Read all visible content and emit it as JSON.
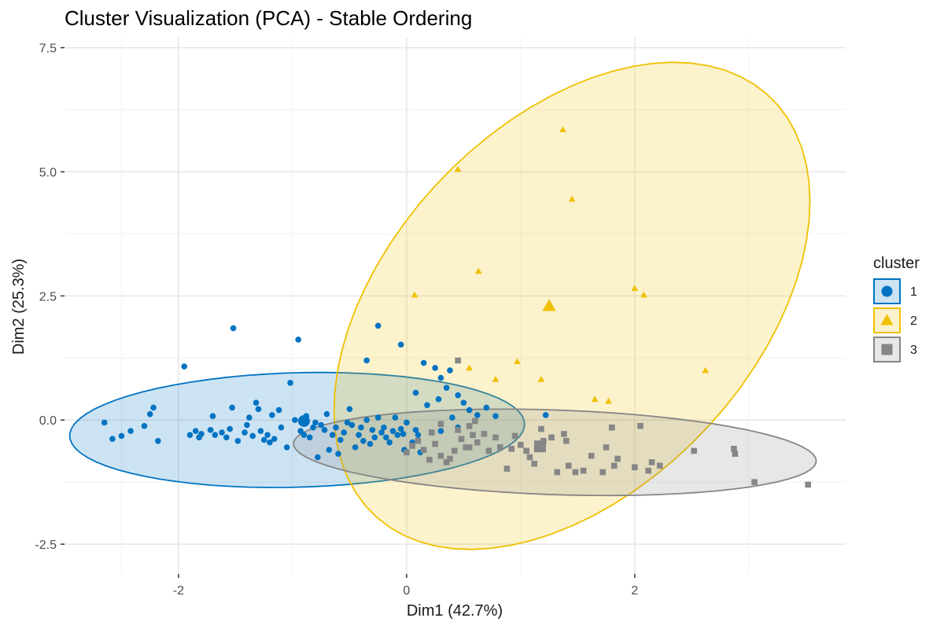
{
  "chart_data": {
    "type": "scatter",
    "title": "Cluster Visualization (PCA) - Stable Ordering",
    "xlabel": "Dim1 (42.7%)",
    "ylabel": "Dim2 (25.3%)",
    "xlim": [
      -3.0,
      3.85
    ],
    "ylim": [
      -3.1,
      7.7
    ],
    "xticks": [
      -2,
      0,
      2
    ],
    "xtick_labels": [
      "-2",
      "0",
      "2"
    ],
    "yticks": [
      -2.5,
      0,
      2.5,
      5,
      7.5
    ],
    "ytick_labels": [
      "-2.5",
      "0.0",
      "2.5",
      "5.0",
      "7.5"
    ],
    "grid": true,
    "legend": {
      "title": "cluster",
      "position": "right"
    },
    "series": [
      {
        "name": "1",
        "shape": "circle",
        "color": "#0073C2",
        "centroid": [
          -0.9,
          -0.02
        ],
        "ellipse": {
          "center": [
            -0.96,
            -0.2
          ],
          "rx": 2.0,
          "ry": 1.15,
          "angle": 5
        },
        "points": [
          [
            -2.65,
            -0.05
          ],
          [
            -2.58,
            -0.38
          ],
          [
            -2.5,
            -0.32
          ],
          [
            -2.42,
            -0.22
          ],
          [
            -2.3,
            -0.12
          ],
          [
            -2.25,
            0.12
          ],
          [
            -2.22,
            0.25
          ],
          [
            -2.18,
            -0.42
          ],
          [
            -1.95,
            1.08
          ],
          [
            -1.9,
            -0.3
          ],
          [
            -1.85,
            -0.22
          ],
          [
            -1.82,
            -0.35
          ],
          [
            -1.8,
            -0.28
          ],
          [
            -1.72,
            -0.2
          ],
          [
            -1.7,
            0.08
          ],
          [
            -1.68,
            -0.3
          ],
          [
            -1.62,
            -0.25
          ],
          [
            -1.58,
            -0.35
          ],
          [
            -1.55,
            -0.18
          ],
          [
            -1.53,
            0.25
          ],
          [
            -1.52,
            1.85
          ],
          [
            -1.48,
            -0.42
          ],
          [
            -1.42,
            -0.25
          ],
          [
            -1.4,
            -0.1
          ],
          [
            -1.38,
            0.05
          ],
          [
            -1.35,
            -0.32
          ],
          [
            -1.32,
            0.35
          ],
          [
            -1.3,
            0.22
          ],
          [
            -1.28,
            -0.22
          ],
          [
            -1.25,
            -0.4
          ],
          [
            -1.22,
            -0.3
          ],
          [
            -1.2,
            -0.45
          ],
          [
            -1.18,
            0.1
          ],
          [
            -1.16,
            -0.38
          ],
          [
            -1.12,
            0.2
          ],
          [
            -1.1,
            -0.15
          ],
          [
            -1.05,
            -0.55
          ],
          [
            -1.02,
            0.75
          ],
          [
            -0.98,
            0.0
          ],
          [
            -0.95,
            1.62
          ],
          [
            -0.93,
            -0.22
          ],
          [
            -0.9,
            -0.3
          ],
          [
            -0.88,
            0.08
          ],
          [
            -0.85,
            -0.35
          ],
          [
            -0.82,
            -0.15
          ],
          [
            -0.8,
            -0.05
          ],
          [
            -0.78,
            -0.75
          ],
          [
            -0.75,
            -0.1
          ],
          [
            -0.72,
            -0.2
          ],
          [
            -0.7,
            0.12
          ],
          [
            -0.68,
            -0.6
          ],
          [
            -0.65,
            -0.3
          ],
          [
            -0.62,
            -0.15
          ],
          [
            -0.6,
            -0.68
          ],
          [
            -0.58,
            -0.4
          ],
          [
            -0.55,
            -0.25
          ],
          [
            -0.52,
            -0.05
          ],
          [
            -0.5,
            0.22
          ],
          [
            -0.48,
            -0.1
          ],
          [
            -0.45,
            -0.55
          ],
          [
            -0.42,
            -0.3
          ],
          [
            -0.4,
            -0.15
          ],
          [
            -0.38,
            -0.42
          ],
          [
            -0.35,
            0.0
          ],
          [
            -0.32,
            -0.48
          ],
          [
            -0.3,
            -0.2
          ],
          [
            -0.28,
            -0.35
          ],
          [
            -0.25,
            0.05
          ],
          [
            -0.22,
            -0.25
          ],
          [
            -0.2,
            -0.15
          ],
          [
            -0.18,
            -0.35
          ],
          [
            -0.15,
            -0.45
          ],
          [
            -0.12,
            -0.22
          ],
          [
            -0.1,
            0.05
          ],
          [
            -0.08,
            -0.3
          ],
          [
            -0.05,
            -0.18
          ],
          [
            -0.05,
            1.52
          ],
          [
            -0.03,
            -0.28
          ],
          [
            -0.02,
            -0.6
          ],
          [
            0.0,
            -0.05
          ],
          [
            0.05,
            -0.45
          ],
          [
            0.08,
            -0.2
          ],
          [
            0.1,
            -0.3
          ],
          [
            0.12,
            -0.65
          ],
          [
            -0.25,
            1.9
          ],
          [
            -0.35,
            1.2
          ],
          [
            0.15,
            1.15
          ],
          [
            0.25,
            1.05
          ],
          [
            0.3,
            0.85
          ],
          [
            0.35,
            0.65
          ],
          [
            0.45,
            0.5
          ],
          [
            0.28,
            0.42
          ],
          [
            0.18,
            0.3
          ],
          [
            0.08,
            0.55
          ],
          [
            0.5,
            0.35
          ],
          [
            0.55,
            0.2
          ],
          [
            0.62,
            0.1
          ],
          [
            0.7,
            0.25
          ],
          [
            0.78,
            0.08
          ],
          [
            1.22,
            0.1
          ],
          [
            0.4,
            0.05
          ],
          [
            0.45,
            -0.15
          ],
          [
            0.3,
            -0.22
          ],
          [
            0.38,
            1.0
          ]
        ]
      },
      {
        "name": "2",
        "shape": "triangle",
        "color": "#EFC000",
        "centroid": [
          1.25,
          2.3
        ],
        "ellipse": {
          "center": [
            1.45,
            2.3
          ],
          "rx": 5.0,
          "ry": 1.85,
          "angle": 78
        },
        "points": [
          [
            1.37,
            5.85
          ],
          [
            0.45,
            5.05
          ],
          [
            1.45,
            4.45
          ],
          [
            0.63,
            3.0
          ],
          [
            0.07,
            2.52
          ],
          [
            2.0,
            2.65
          ],
          [
            2.08,
            2.52
          ],
          [
            0.97,
            1.18
          ],
          [
            0.55,
            1.05
          ],
          [
            0.78,
            0.82
          ],
          [
            1.18,
            0.82
          ],
          [
            2.62,
            1.0
          ],
          [
            1.65,
            0.42
          ],
          [
            1.77,
            0.38
          ]
        ]
      },
      {
        "name": "3",
        "shape": "square",
        "color": "#868686",
        "centroid": [
          1.17,
          -0.53
        ],
        "ellipse": {
          "center": [
            1.3,
            -0.65
          ],
          "rx": 2.3,
          "ry": 0.85,
          "angle": -5
        },
        "points": [
          [
            3.52,
            -1.3
          ],
          [
            3.05,
            -1.25
          ],
          [
            2.88,
            -0.68
          ],
          [
            2.87,
            -0.58
          ],
          [
            2.52,
            -0.62
          ],
          [
            2.22,
            -0.92
          ],
          [
            2.15,
            -0.85
          ],
          [
            2.12,
            -1.02
          ],
          [
            2.0,
            -0.95
          ],
          [
            2.05,
            -0.12
          ],
          [
            1.85,
            -0.78
          ],
          [
            1.82,
            -0.92
          ],
          [
            1.8,
            -0.15
          ],
          [
            1.75,
            -0.55
          ],
          [
            1.72,
            -1.05
          ],
          [
            1.62,
            -0.72
          ],
          [
            1.55,
            -1.02
          ],
          [
            1.48,
            -1.05
          ],
          [
            1.42,
            -0.92
          ],
          [
            1.4,
            -0.42
          ],
          [
            1.38,
            -0.28
          ],
          [
            1.32,
            -1.05
          ],
          [
            1.27,
            -0.35
          ],
          [
            1.2,
            -0.42
          ],
          [
            1.18,
            -0.18
          ],
          [
            1.12,
            -0.88
          ],
          [
            1.08,
            -0.75
          ],
          [
            1.05,
            -0.62
          ],
          [
            1.0,
            -0.5
          ],
          [
            0.95,
            -0.32
          ],
          [
            0.88,
            -0.98
          ],
          [
            0.82,
            -0.55
          ],
          [
            0.78,
            -0.35
          ],
          [
            0.72,
            -0.62
          ],
          [
            0.68,
            -0.28
          ],
          [
            0.62,
            -0.45
          ],
          [
            0.58,
            -0.3
          ],
          [
            0.55,
            -0.12
          ],
          [
            0.52,
            -0.55
          ],
          [
            0.48,
            -0.38
          ],
          [
            0.45,
            -0.2
          ],
          [
            0.42,
            -0.62
          ],
          [
            0.38,
            -0.78
          ],
          [
            0.35,
            -0.85
          ],
          [
            0.3,
            -0.72
          ],
          [
            0.25,
            -0.48
          ],
          [
            0.2,
            -0.8
          ],
          [
            0.15,
            -0.6
          ],
          [
            0.1,
            -0.42
          ],
          [
            0.05,
            -0.52
          ],
          [
            0.0,
            -0.65
          ],
          [
            0.45,
            1.2
          ],
          [
            0.6,
            -0.02
          ],
          [
            0.55,
            -0.55
          ],
          [
            0.92,
            -0.58
          ],
          [
            1.15,
            -0.55
          ],
          [
            0.3,
            -0.08
          ],
          [
            0.22,
            -0.25
          ]
        ]
      }
    ]
  }
}
